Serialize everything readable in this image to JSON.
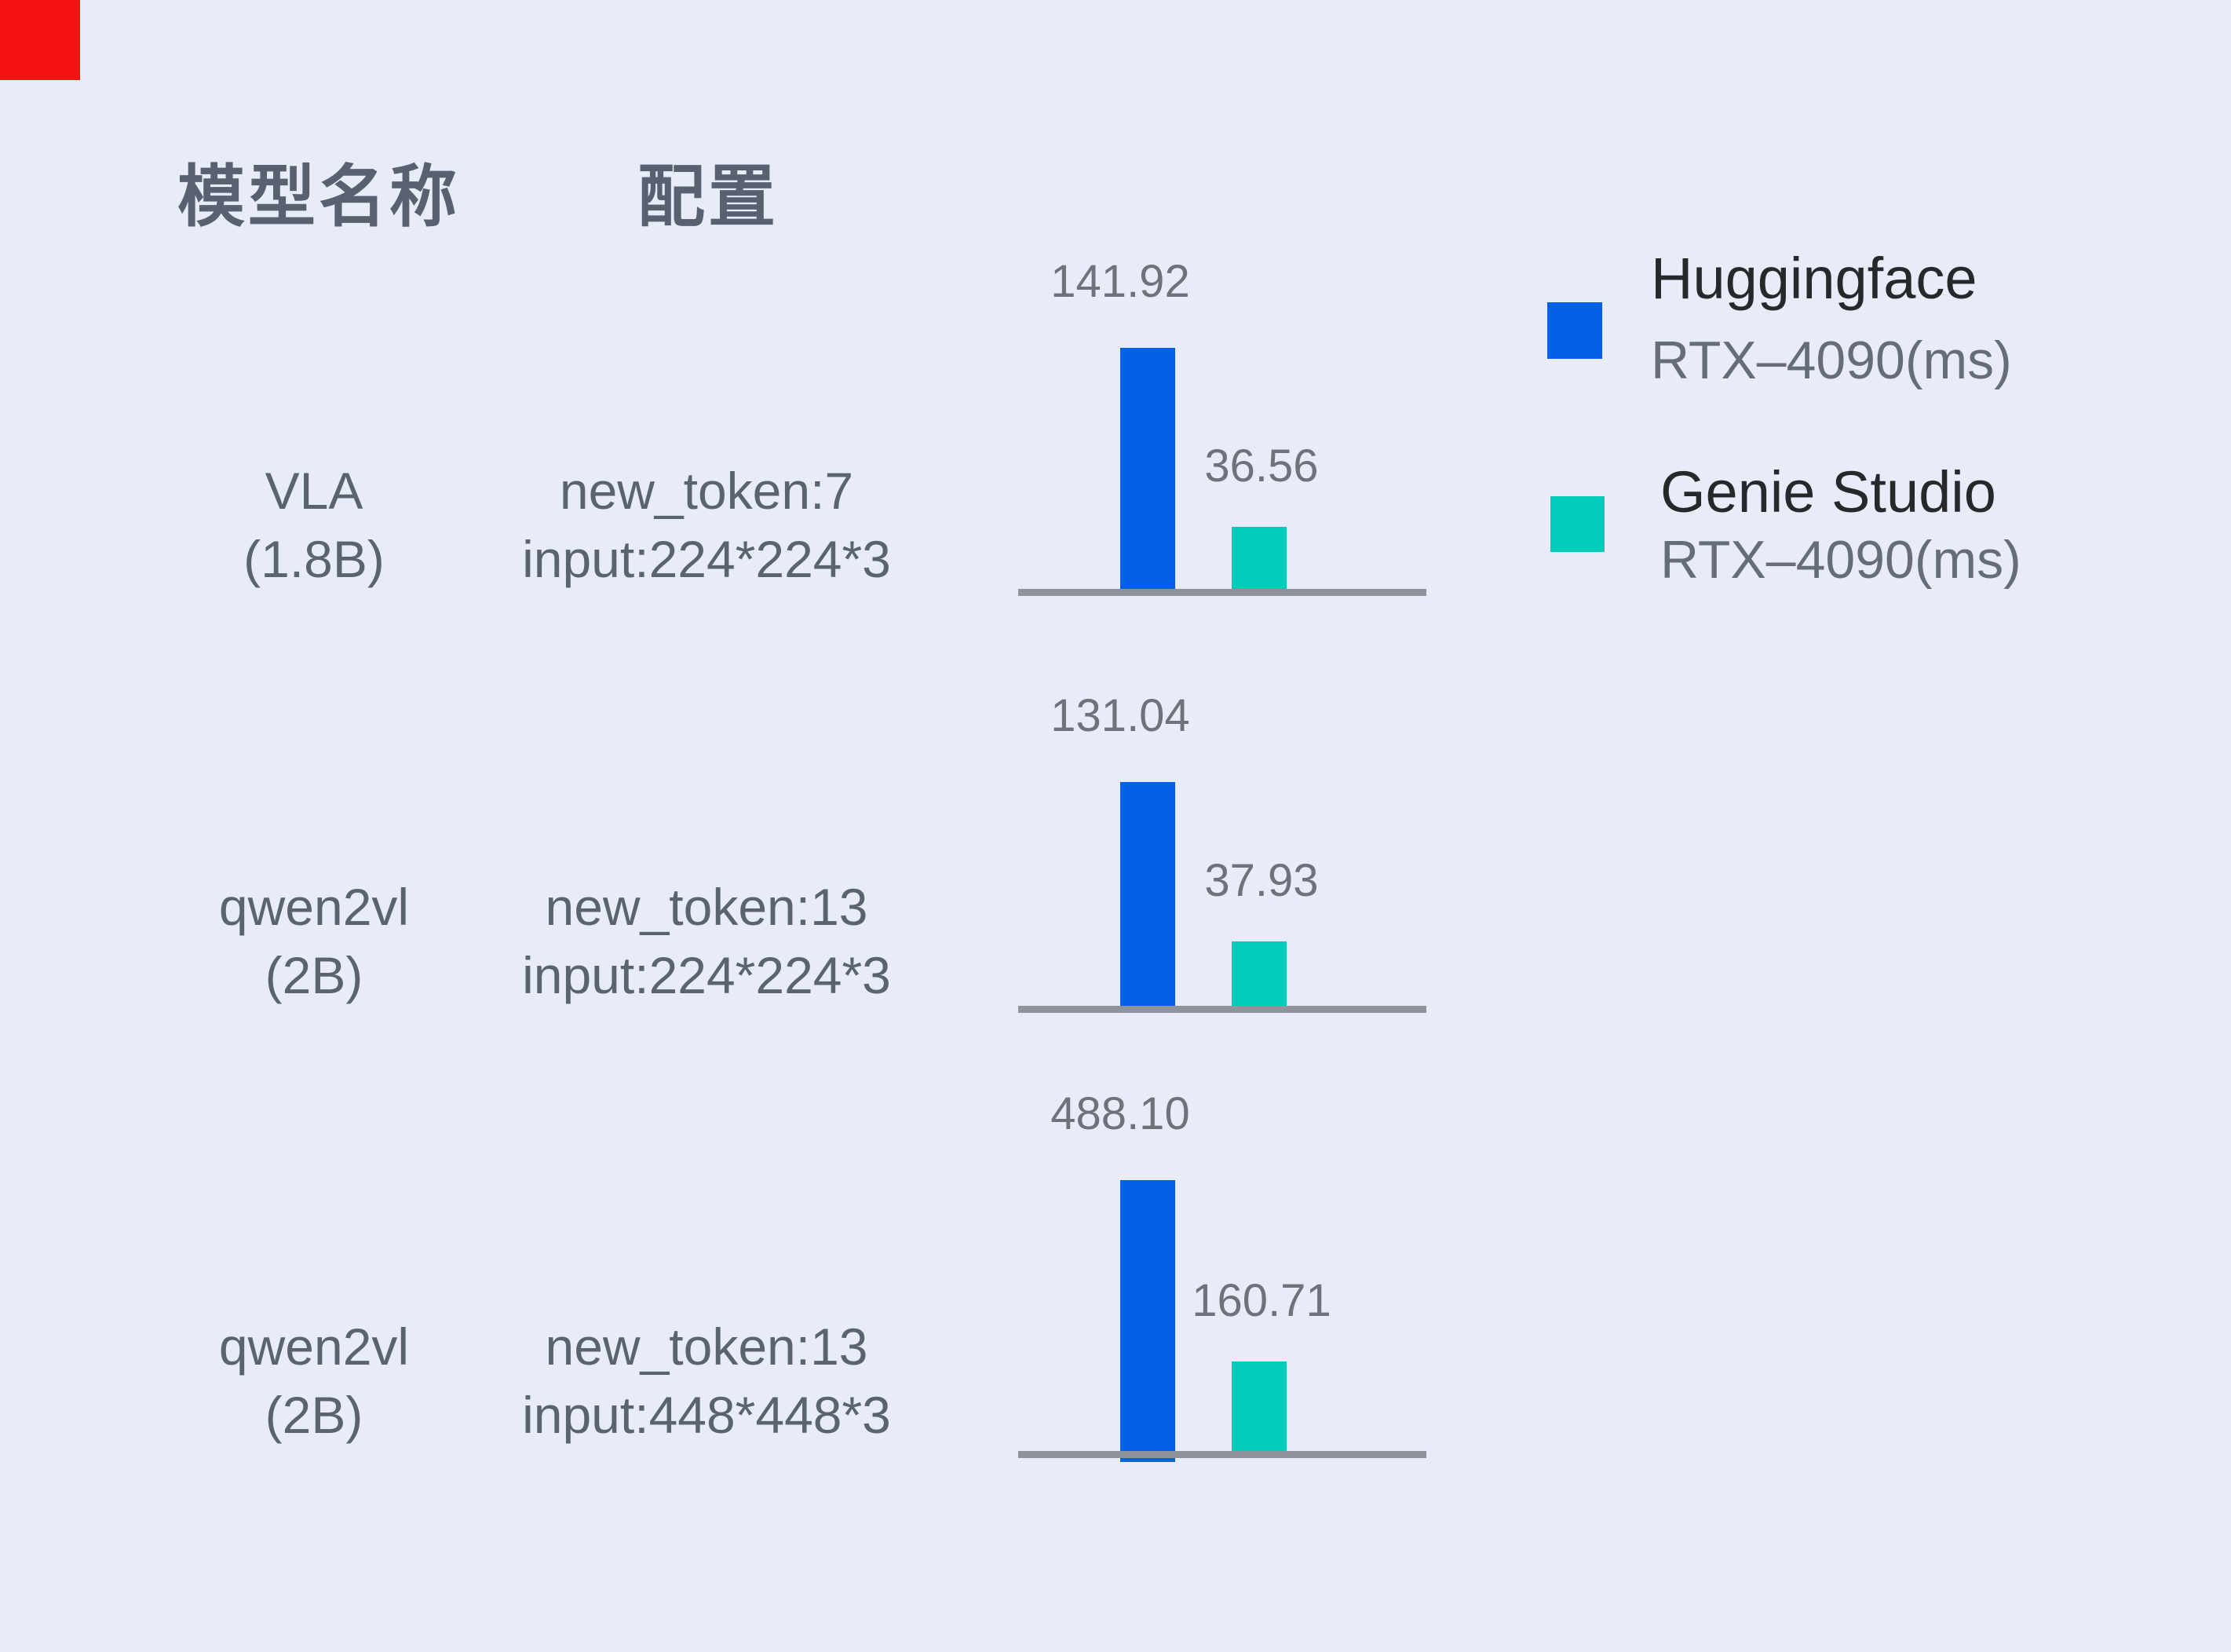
{
  "page": {
    "background": "#e7ecf8",
    "marker_color": "#f61212"
  },
  "header": {
    "model_column": "模型名称",
    "config_column": "配置"
  },
  "legend": {
    "items": [
      {
        "label": "Huggingface",
        "sublabel": "RTX–4090(ms)",
        "color": "#0560e8"
      },
      {
        "label": "Genie Studio",
        "sublabel": "RTX–4090(ms)",
        "color": "#03cbb9"
      }
    ]
  },
  "chart_data": {
    "type": "bar",
    "unit": "ms",
    "axis_color": "#8f949c",
    "value_label_color": "#6d727b",
    "series_names": [
      "Huggingface RTX-4090(ms)",
      "Genie Studio RTX-4090(ms)"
    ],
    "colors": {
      "huggingface": "#0560e8",
      "genie_studio": "#03cbb9"
    },
    "rows": [
      {
        "model_line1": "VLA",
        "model_line2": "(1.8B)",
        "config_line1": "new_token:7",
        "config_line2": "input:224*224*3",
        "huggingface": 141.92,
        "genie_studio": 36.56,
        "hf_label": "141.92",
        "gs_label": "36.56"
      },
      {
        "model_line1": "qwen2vl",
        "model_line2": "(2B)",
        "config_line1": "new_token:13",
        "config_line2": "input:224*224*3",
        "huggingface": 131.04,
        "genie_studio": 37.93,
        "hf_label": "131.04",
        "gs_label": "37.93"
      },
      {
        "model_line1": "qwen2vl",
        "model_line2": "(2B)",
        "config_line1": "new_token:13",
        "config_line2": "input:448*448*3",
        "huggingface": 488.1,
        "genie_studio": 160.71,
        "hf_label": "488.10",
        "gs_label": "160.71"
      }
    ]
  }
}
